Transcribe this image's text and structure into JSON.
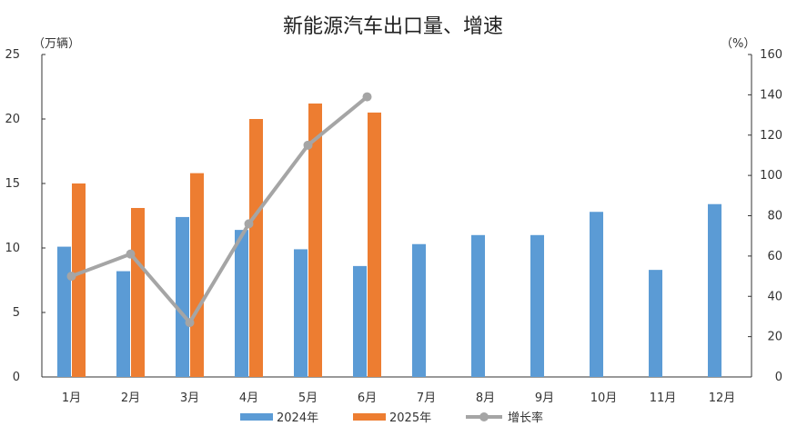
{
  "chart_data": {
    "type": "bar",
    "title": "新能源汽车出口量、增速",
    "y_unit_left": "（万辆）",
    "y_unit_right": "（%）",
    "categories": [
      "1月",
      "2月",
      "3月",
      "4月",
      "5月",
      "6月",
      "7月",
      "8月",
      "9月",
      "10月",
      "11月",
      "12月"
    ],
    "ylim_left": [
      0,
      25
    ],
    "yticks_left": [
      "0",
      "5",
      "10",
      "15",
      "20",
      "25"
    ],
    "ylim_right": [
      0,
      160
    ],
    "yticks_right": [
      "0",
      "20",
      "40",
      "60",
      "80",
      "100",
      "120",
      "140",
      "160"
    ],
    "grid": false,
    "legend_position": "bottom",
    "series": [
      {
        "name": "2024年",
        "type": "bar",
        "axis": "left",
        "color": "#5B9BD5",
        "values": [
          10.1,
          8.2,
          12.4,
          11.4,
          9.9,
          8.6,
          10.3,
          11.0,
          11.0,
          12.8,
          8.3,
          13.4
        ]
      },
      {
        "name": "2025年",
        "type": "bar",
        "axis": "left",
        "color": "#ED7D31",
        "values": [
          15.0,
          13.1,
          15.8,
          20.0,
          21.2,
          20.5,
          null,
          null,
          null,
          null,
          null,
          null
        ]
      },
      {
        "name": "增长率",
        "type": "line",
        "axis": "right",
        "color": "#A5A5A5",
        "values": [
          50,
          61,
          27,
          76,
          115,
          139,
          null,
          null,
          null,
          null,
          null,
          null
        ]
      }
    ]
  }
}
